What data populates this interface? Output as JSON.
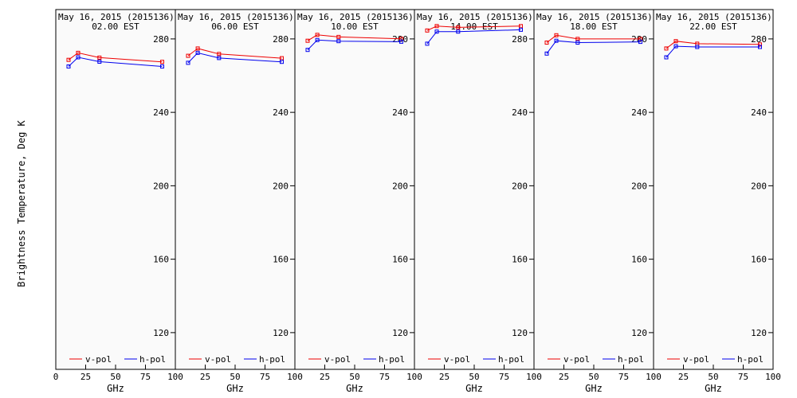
{
  "ylabel": "Brightness Temperature, Deg K",
  "xlabel": "GHz",
  "legend": {
    "v": "v-pol",
    "h": "h-pol"
  },
  "colors": {
    "v": "#ee0000",
    "h": "#0000ee"
  },
  "xticks": [
    "0",
    "25",
    "50",
    "75",
    "100"
  ],
  "yticks": [
    "120",
    "160",
    "200",
    "240",
    "280"
  ],
  "chart_data": [
    {
      "type": "line",
      "title": [
        "May 16, 2015 (2015136)",
        "02.00 EST"
      ],
      "x": [
        10.65,
        18.7,
        36.5,
        89.0
      ],
      "ylim": [
        100,
        296
      ],
      "xlim": [
        0,
        100
      ],
      "series": [
        {
          "name": "v-pol",
          "values": [
            268.6,
            272.4,
            269.8,
            267.5
          ]
        },
        {
          "name": "h-pol",
          "values": [
            265.0,
            270.0,
            267.6,
            265.0
          ]
        }
      ]
    },
    {
      "type": "line",
      "title": [
        "May 16, 2015 (2015136)",
        "06.00 EST"
      ],
      "x": [
        10.65,
        18.7,
        36.5,
        89.0
      ],
      "ylim": [
        100,
        296
      ],
      "xlim": [
        0,
        100
      ],
      "series": [
        {
          "name": "v-pol",
          "values": [
            270.8,
            274.8,
            271.8,
            269.5
          ]
        },
        {
          "name": "h-pol",
          "values": [
            267.0,
            272.4,
            269.6,
            267.5
          ]
        }
      ]
    },
    {
      "type": "line",
      "title": [
        "May 16, 2015 (2015136)",
        "10.00 EST"
      ],
      "x": [
        10.65,
        18.7,
        36.5,
        89.0
      ],
      "ylim": [
        100,
        296
      ],
      "xlim": [
        0,
        100
      ],
      "series": [
        {
          "name": "v-pol",
          "values": [
            279.0,
            282.2,
            281.1,
            280.1
          ]
        },
        {
          "name": "h-pol",
          "values": [
            274.0,
            279.4,
            278.8,
            278.5
          ]
        }
      ]
    },
    {
      "type": "line",
      "title": [
        "May 16, 2015 (2015136)",
        "14.00 EST"
      ],
      "x": [
        10.65,
        18.7,
        36.5,
        89.0
      ],
      "ylim": [
        100,
        296
      ],
      "xlim": [
        0,
        100
      ],
      "series": [
        {
          "name": "v-pol",
          "values": [
            284.6,
            287.0,
            286.3,
            287.0
          ]
        },
        {
          "name": "h-pol",
          "values": [
            277.4,
            284.0,
            284.0,
            285.0
          ]
        }
      ]
    },
    {
      "type": "line",
      "title": [
        "May 16, 2015 (2015136)",
        "18.00 EST"
      ],
      "x": [
        10.65,
        18.7,
        36.5,
        89.0
      ],
      "ylim": [
        100,
        296
      ],
      "xlim": [
        0,
        100
      ],
      "series": [
        {
          "name": "v-pol",
          "values": [
            278.0,
            282.0,
            280.0,
            280.0
          ]
        },
        {
          "name": "h-pol",
          "values": [
            272.0,
            279.0,
            278.0,
            278.4
          ]
        }
      ]
    },
    {
      "type": "line",
      "title": [
        "May 16, 2015 (2015136)",
        "22.00 EST"
      ],
      "x": [
        10.65,
        18.7,
        36.5,
        89.0
      ],
      "ylim": [
        100,
        296
      ],
      "xlim": [
        0,
        100
      ],
      "series": [
        {
          "name": "v-pol",
          "values": [
            274.8,
            278.8,
            277.4,
            277.0
          ]
        },
        {
          "name": "h-pol",
          "values": [
            270.0,
            276.0,
            275.6,
            275.6
          ]
        }
      ]
    }
  ]
}
